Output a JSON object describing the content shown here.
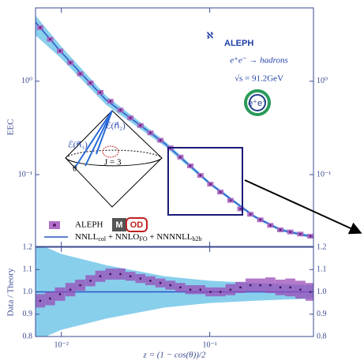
{
  "chart_data": [
    {
      "type": "errorbar",
      "ylabel": "EEC",
      "log_x": true,
      "log_y": true,
      "xlim": [
        0.0067,
        0.5
      ],
      "ylim": [
        0.017,
        6.1
      ],
      "yticks": [
        {
          "value": 1,
          "label": "10⁰"
        },
        {
          "value": 0.1,
          "label": "10⁻¹"
        }
      ],
      "x": [
        0.0072,
        0.0084,
        0.0098,
        0.0115,
        0.0134,
        0.0157,
        0.0183,
        0.0214,
        0.025,
        0.0292,
        0.0341,
        0.0398,
        0.0465,
        0.0543,
        0.0634,
        0.074,
        0.0865,
        0.101,
        0.118,
        0.138,
        0.161,
        0.188,
        0.219,
        0.256,
        0.299,
        0.349,
        0.408,
        0.477
      ],
      "series": [
        {
          "name": "ALEPH",
          "badge": [
            "M",
            "OD"
          ],
          "color": "#a860c0",
          "values": [
            3.75,
            2.81,
            2.11,
            1.58,
            1.2,
            0.96,
            0.76,
            0.61,
            0.49,
            0.405,
            0.336,
            0.28,
            0.233,
            0.193,
            0.154,
            0.124,
            0.098,
            0.079,
            0.065,
            0.053,
            0.043,
            0.0376,
            0.0328,
            0.0286,
            0.0256,
            0.0243,
            0.0231,
            0.0219
          ]
        }
      ],
      "theory": {
        "name_parts": [
          "NNLL",
          "col",
          " + NNLO",
          "FO",
          " + NNNNLL",
          "b2b"
        ],
        "color": "#2a55c8",
        "band_color": "#88cfec",
        "x": [
          0.0067,
          0.01,
          0.02,
          0.05,
          0.1,
          0.2,
          0.3,
          0.5
        ],
        "values": [
          4.28,
          2.04,
          0.63,
          0.214,
          0.0805,
          0.0356,
          0.0256,
          0.0214
        ],
        "lower": [
          3.1,
          1.75,
          0.56,
          0.2,
          0.077,
          0.0343,
          0.0246,
          0.0206
        ],
        "upper": [
          5.05,
          2.35,
          0.7,
          0.228,
          0.084,
          0.0369,
          0.0266,
          0.0222
        ]
      },
      "annotations": {
        "logo_symbol": "ℵ",
        "logo": "ALEPH",
        "process": "e⁺e⁻ → hadrons",
        "energy": "√s = 91.2GeV",
        "badge": "e⁺e⁻",
        "inset": {
          "e1": "ℰ(n⃗₁)",
          "e2": "ℰ(n⃗₂)",
          "theta": "θ",
          "jet": "J = 3"
        }
      }
    },
    {
      "type": "ratio",
      "ylabel": "Data / Theory",
      "xlabel": "z = (1 − cos(θ))/2",
      "log_x": true,
      "xlim": [
        0.0067,
        0.5
      ],
      "ylim": [
        0.8,
        1.2
      ],
      "xticks": [
        {
          "value": 0.01,
          "label": "10⁻²"
        },
        {
          "value": 0.1,
          "label": "10⁻¹"
        }
      ],
      "yticks": [
        0.8,
        0.9,
        {
          "value": 1.0,
          "label": "1.0"
        },
        1.1,
        1.2
      ],
      "reference": 1,
      "values": [
        0.96,
        0.97,
        0.99,
        1.01,
        1.03,
        1.05,
        1.07,
        1.08,
        1.08,
        1.07,
        1.06,
        1.05,
        1.04,
        1.03,
        1.02,
        1.01,
        1.01,
        1.0,
        1.0,
        1.01,
        1.02,
        1.03,
        1.03,
        1.03,
        1.02,
        1.02,
        1.01,
        1.0
      ],
      "errors": [
        0.03,
        0.03,
        0.03,
        0.03,
        0.025,
        0.025,
        0.025,
        0.025,
        0.025,
        0.02,
        0.02,
        0.02,
        0.02,
        0.02,
        0.02,
        0.02,
        0.02,
        0.02,
        0.02,
        0.025,
        0.025,
        0.03,
        0.03,
        0.035,
        0.035,
        0.04,
        0.04,
        0.04
      ],
      "band_lower": [
        0.78,
        0.83,
        0.88,
        0.93,
        0.95,
        0.96,
        0.965,
        0.97
      ],
      "band_upper": [
        1.22,
        1.17,
        1.12,
        1.07,
        1.05,
        1.04,
        1.035,
        1.03
      ]
    }
  ]
}
